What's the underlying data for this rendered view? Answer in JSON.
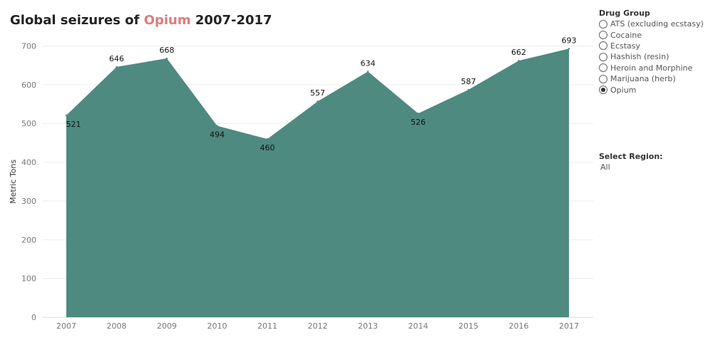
{
  "title": {
    "prefix": "Global seizures of ",
    "highlight": "Opium",
    "suffix": " 2007-2017",
    "highlight_color": "#e07a7a"
  },
  "drug_group": {
    "label": "Drug Group",
    "options": [
      {
        "label": "ATS (excluding ecstasy)",
        "selected": false
      },
      {
        "label": "Cocaine",
        "selected": false
      },
      {
        "label": "Ecstasy",
        "selected": false
      },
      {
        "label": "Hashish (resin)",
        "selected": false
      },
      {
        "label": "Heroin and Morphine",
        "selected": false
      },
      {
        "label": "Marijuana (herb)",
        "selected": false
      },
      {
        "label": "Opium",
        "selected": true
      }
    ]
  },
  "region": {
    "label": "Select Region:",
    "value": "All"
  },
  "chart_data": {
    "type": "area",
    "x": [
      "2007",
      "2008",
      "2009",
      "2010",
      "2011",
      "2012",
      "2013",
      "2014",
      "2015",
      "2016",
      "2017"
    ],
    "values": [
      521,
      646,
      668,
      494,
      460,
      557,
      634,
      526,
      587,
      662,
      693
    ],
    "data_labels": [
      "521",
      "646",
      "668",
      "494",
      "460",
      "557",
      "634",
      "526",
      "587",
      "662",
      "693"
    ],
    "ylabel": "Metric Tons",
    "xlabel": "",
    "ylim": [
      0,
      700
    ],
    "yticks": [
      0,
      100,
      200,
      300,
      400,
      500,
      600,
      700
    ],
    "grid": true,
    "fill_color": "#4e8a80"
  }
}
